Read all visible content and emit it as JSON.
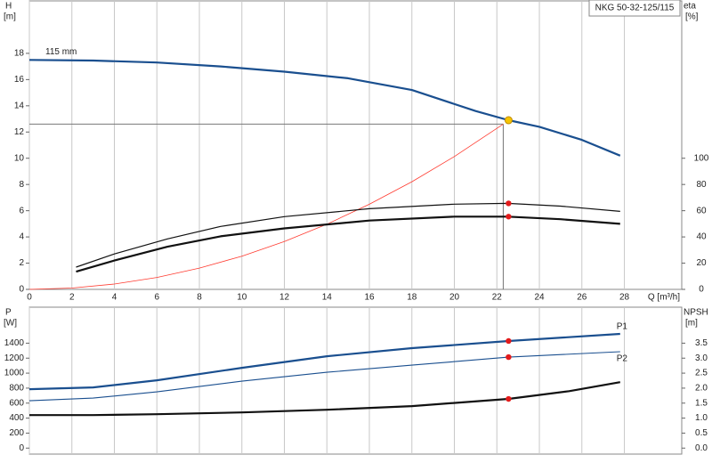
{
  "chart_data": [
    {
      "type": "line",
      "title": "NKG 50-32-125/115",
      "x_label": "Q [m³/h]",
      "y_label": "H",
      "y_unit": "[m]",
      "y2_label": "eta",
      "y2_unit": "[%]",
      "xlim": [
        0,
        30.7
      ],
      "ylim": [
        0,
        22
      ],
      "y2lim": [
        0,
        220
      ],
      "xticks": [
        0,
        2,
        4,
        6,
        8,
        10,
        12,
        14,
        16,
        18,
        20,
        22,
        24,
        26,
        28
      ],
      "yticks": [
        0,
        2,
        4,
        6,
        8,
        10,
        12,
        14,
        16,
        18
      ],
      "y2ticks": [
        0,
        20,
        40,
        60,
        80,
        100
      ],
      "grid": "x",
      "crosshair": {
        "x": 22.3,
        "y": 12.6
      },
      "duty_point": {
        "x": 22.55,
        "y": 12.9,
        "color": "#f5c400"
      },
      "series": [
        {
          "name": "115 mm",
          "color": "#1a4f8f",
          "width": 2.2,
          "x": [
            0,
            3,
            6,
            9,
            12,
            15,
            18,
            21,
            22.55,
            24,
            26,
            27.8
          ],
          "values": [
            17.5,
            17.45,
            17.3,
            17.0,
            16.6,
            16.1,
            15.2,
            13.6,
            12.9,
            12.4,
            11.4,
            10.2
          ]
        },
        {
          "color": "#ff3b30",
          "width": 0.8,
          "x": [
            0,
            2,
            4,
            6,
            8,
            10,
            12,
            14,
            16,
            18,
            20,
            22.3
          ],
          "values": [
            0,
            0.1,
            0.41,
            0.91,
            1.62,
            2.53,
            3.65,
            4.97,
            6.49,
            8.21,
            10.13,
            12.6
          ]
        },
        {
          "color": "#111111",
          "width": 1.2,
          "axis": "y2",
          "x": [
            2.2,
            4,
            6.5,
            9,
            12,
            16,
            20,
            22.5,
            25,
            27.8
          ],
          "values": [
            17,
            27,
            38.5,
            48,
            55.5,
            61.5,
            65,
            65.6,
            63.5,
            59.5
          ],
          "marker": {
            "x": 22.55,
            "y": 65.6,
            "color": "#e31b1b"
          }
        },
        {
          "color": "#111111",
          "width": 2.2,
          "axis": "y2",
          "x": [
            2.2,
            4,
            6.5,
            9,
            12,
            16,
            20,
            22.5,
            25,
            27.8
          ],
          "values": [
            13.5,
            22,
            32.5,
            40.5,
            46.5,
            52.5,
            55.5,
            55.5,
            53.5,
            50
          ],
          "marker": {
            "x": 22.55,
            "y": 55.5,
            "color": "#e31b1b"
          }
        }
      ]
    },
    {
      "type": "line",
      "y_label": "P",
      "y_unit": "[W]",
      "y2_label": "NPSH",
      "y2_unit": "[m]",
      "xlim": [
        0,
        30.7
      ],
      "ylim": [
        -80,
        1880
      ],
      "y2lim": [
        -0.2,
        4.7
      ],
      "xticks": [
        0,
        2,
        4,
        6,
        8,
        10,
        12,
        14,
        16,
        18,
        20,
        22,
        24,
        26,
        28
      ],
      "yticks": [
        0,
        200,
        400,
        600,
        800,
        1000,
        1200,
        1400
      ],
      "y2ticks": [
        {
          "value": 0,
          "label": "0.0"
        },
        0.5,
        {
          "value": 1,
          "label": "1.0"
        },
        1.5,
        {
          "value": 2,
          "label": "2.0"
        },
        2.5,
        {
          "value": 3,
          "label": "3.0"
        },
        3.5
      ],
      "grid": "x",
      "series": [
        {
          "name": "P1",
          "color": "#1a4f8f",
          "width": 2.2,
          "x": [
            0,
            3,
            6,
            10,
            14,
            18,
            22.55,
            27.8
          ],
          "values": [
            786,
            810,
            905,
            1071,
            1226,
            1333,
            1429,
            1524
          ],
          "marker": {
            "x": 22.55,
            "y": 1429,
            "color": "#e31b1b"
          }
        },
        {
          "name": "P2",
          "color": "#1a4f8f",
          "width": 1.1,
          "x": [
            0,
            3,
            6,
            10,
            14,
            18,
            22.55,
            27.8
          ],
          "values": [
            631,
            667,
            750,
            893,
            1012,
            1107,
            1214,
            1286
          ],
          "marker": {
            "x": 22.55,
            "y": 1214,
            "color": "#e31b1b"
          }
        },
        {
          "color": "#111111",
          "width": 2.2,
          "axis": "y2",
          "x": [
            0,
            3,
            6,
            10,
            14,
            18,
            22.55,
            25.4,
            27.8
          ],
          "values": [
            1.1,
            1.1,
            1.13,
            1.19,
            1.28,
            1.4,
            1.64,
            1.9,
            2.2
          ],
          "marker": {
            "x": 22.55,
            "y": 1.64,
            "color": "#e31b1b"
          }
        }
      ]
    }
  ]
}
